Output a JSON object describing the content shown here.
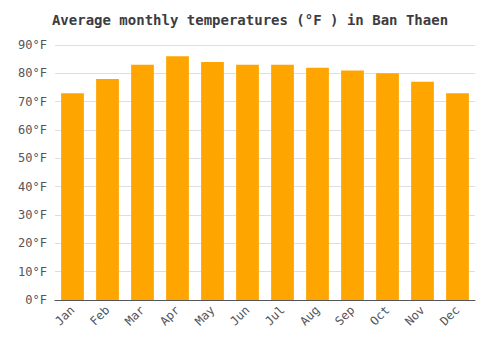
{
  "chart_data": {
    "type": "bar",
    "title": "Average monthly temperatures (°F ) in Ban Thaen",
    "categories": [
      "Jan",
      "Feb",
      "Mar",
      "Apr",
      "May",
      "Jun",
      "Jul",
      "Aug",
      "Sep",
      "Oct",
      "Nov",
      "Dec"
    ],
    "values": [
      73,
      78,
      83,
      86,
      84,
      83,
      83,
      82,
      81,
      80,
      77,
      73
    ],
    "color": "#FFA500",
    "ylim": [
      0,
      90
    ],
    "yticks": [
      {
        "value": 0,
        "label": "0°F"
      },
      {
        "value": 10,
        "label": "10°F"
      },
      {
        "value": 20,
        "label": "20°F"
      },
      {
        "value": 30,
        "label": "30°F"
      },
      {
        "value": 40,
        "label": "40°F"
      },
      {
        "value": 50,
        "label": "50°F"
      },
      {
        "value": 60,
        "label": "60°F"
      },
      {
        "value": 70,
        "label": "70°F"
      },
      {
        "value": 80,
        "label": "80°F"
      },
      {
        "value": 90,
        "label": "90°F"
      }
    ],
    "grid": true
  }
}
